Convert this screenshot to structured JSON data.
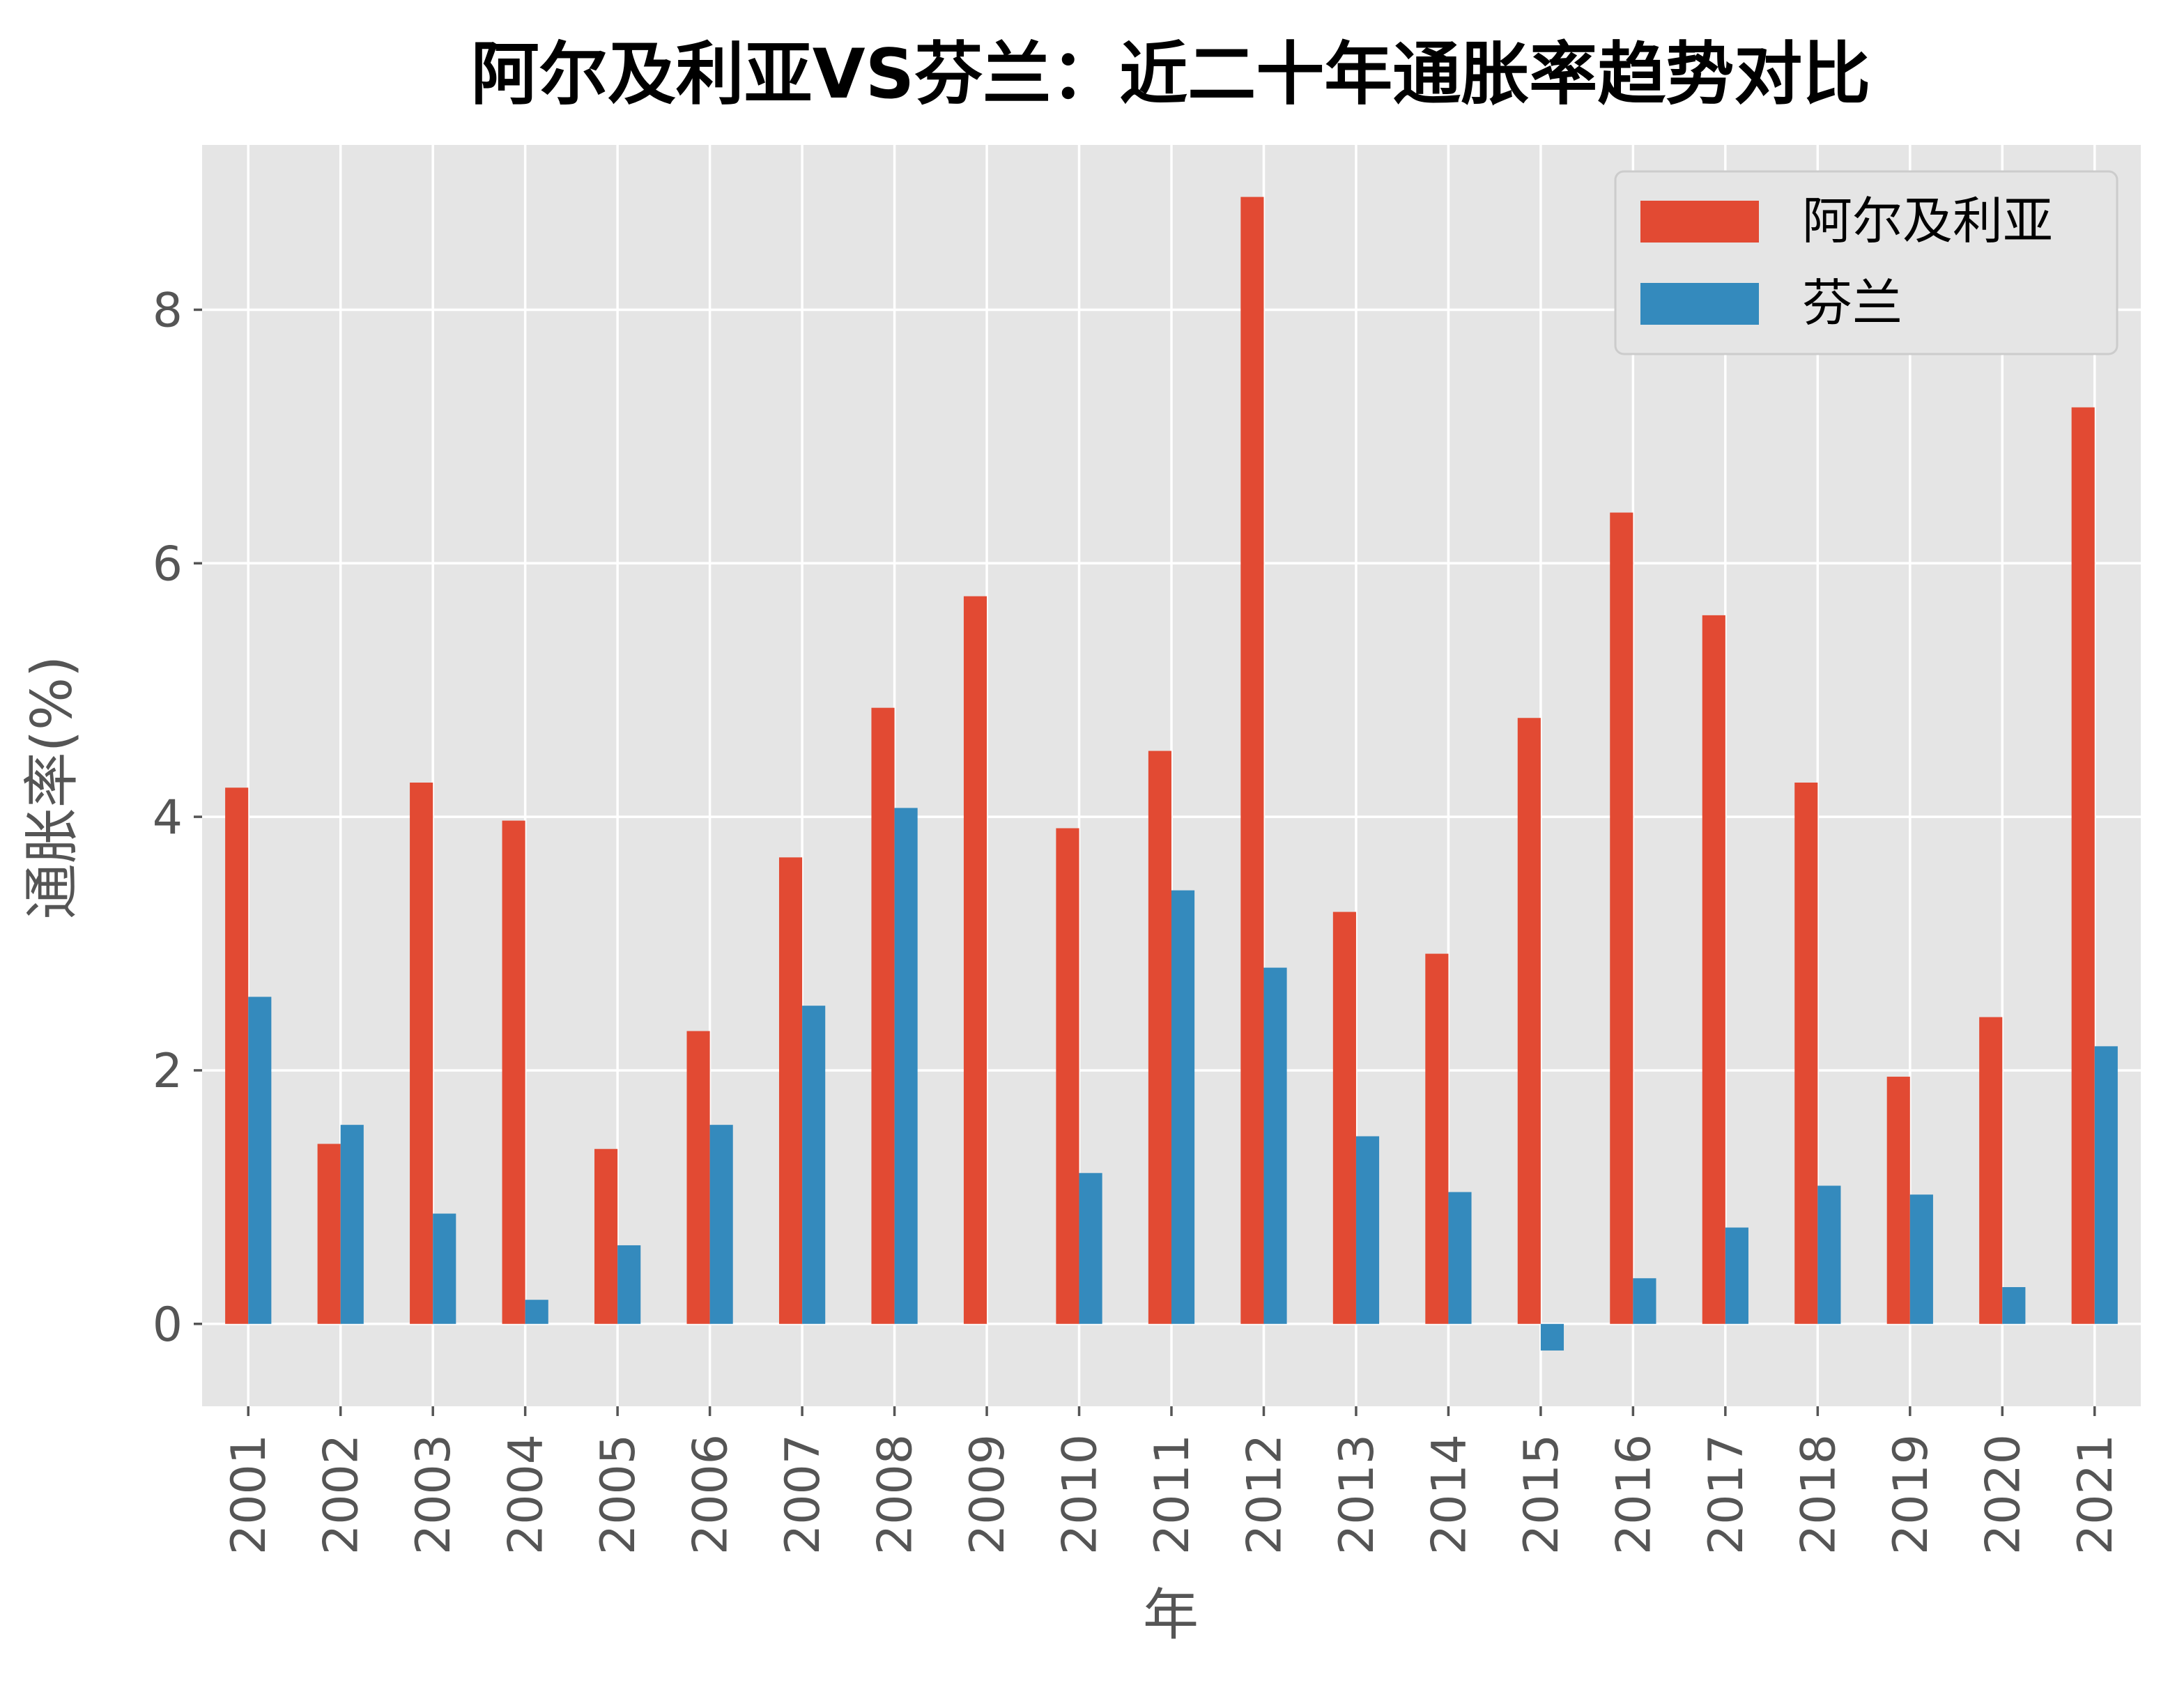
{
  "chart_data": {
    "type": "bar",
    "title": "阿尔及利亚VS芬兰：近二十年通胀率趋势对比",
    "xlabel": "年",
    "ylabel": "通胀率(%)",
    "categories": [
      "2001",
      "2002",
      "2003",
      "2004",
      "2005",
      "2006",
      "2007",
      "2008",
      "2009",
      "2010",
      "2011",
      "2012",
      "2013",
      "2014",
      "2015",
      "2016",
      "2017",
      "2018",
      "2019",
      "2020",
      "2021"
    ],
    "series": [
      {
        "name": "阿尔及利亚",
        "color": "#E24A33",
        "values": [
          4.23,
          1.42,
          4.27,
          3.97,
          1.38,
          2.31,
          3.68,
          4.86,
          5.74,
          3.91,
          4.52,
          8.89,
          3.25,
          2.92,
          4.78,
          6.4,
          5.59,
          4.27,
          1.95,
          2.42,
          7.23
        ]
      },
      {
        "name": "芬兰",
        "color": "#348ABD",
        "values": [
          2.58,
          1.57,
          0.87,
          0.19,
          0.62,
          1.57,
          2.51,
          4.07,
          0.0,
          1.19,
          3.42,
          2.81,
          1.48,
          1.04,
          -0.21,
          0.36,
          0.76,
          1.09,
          1.02,
          0.29,
          2.19
        ]
      }
    ],
    "yticks": [
      0,
      2,
      4,
      6,
      8
    ],
    "ylim": [
      -0.65,
      9.3
    ],
    "grid": true,
    "legend_position": "top-right"
  }
}
